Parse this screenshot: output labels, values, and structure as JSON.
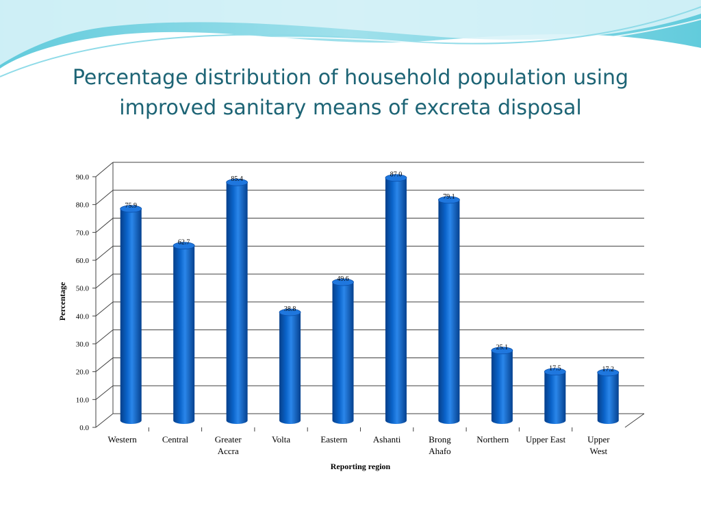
{
  "slide": {
    "title_lines": [
      "Percentage distribution of household population using",
      "improved sanitary means of excreta disposal"
    ]
  },
  "theme": {
    "title_color": "#1d6475",
    "bar_color": "#0a63c9",
    "wave_colors": [
      "#46c2d6",
      "#8fdbe8",
      "#d9f3f8"
    ]
  },
  "chart_data": {
    "type": "bar",
    "style": "3d-cylinder",
    "categories": [
      [
        "Western"
      ],
      [
        "Central"
      ],
      [
        "Greater",
        "Accra"
      ],
      [
        "Volta"
      ],
      [
        "Eastern"
      ],
      [
        "Ashanti"
      ],
      [
        "Brong",
        "Ahafo"
      ],
      [
        "Northern"
      ],
      [
        "Upper East"
      ],
      [
        "Upper",
        "West"
      ]
    ],
    "values": [
      75.9,
      62.7,
      85.4,
      38.8,
      49.6,
      87.0,
      79.1,
      25.1,
      17.5,
      17.2
    ],
    "value_labels": [
      "75.9",
      "62.7",
      "85.4",
      "38.8",
      "49.6",
      "87.0",
      "79.1",
      "25.1",
      "17.5",
      "17.2"
    ],
    "y_ticks": [
      "0.0",
      "10.0",
      "20.0",
      "30.0",
      "40.0",
      "50.0",
      "60.0",
      "70.0",
      "80.0",
      "90.0"
    ],
    "ylim": [
      0,
      90
    ],
    "xlabel": "Reporting region",
    "ylabel": "Percentage",
    "grid": true,
    "legend": "none"
  }
}
